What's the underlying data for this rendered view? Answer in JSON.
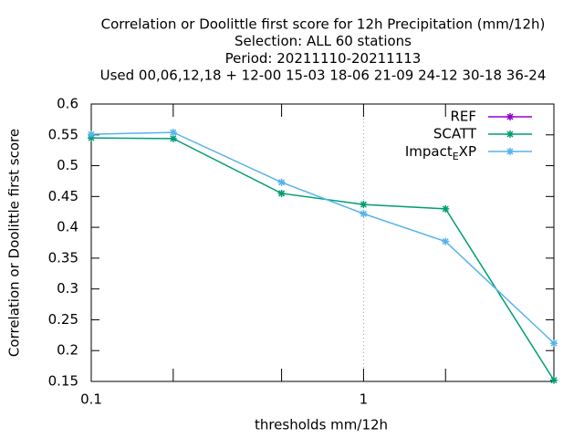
{
  "chart_data": {
    "type": "line",
    "title": [
      "Correlation or Doolittle first score  for 12h Precipitation (mm/12h)",
      "Selection: ALL     60 stations",
      "Period: 20211110-20211113",
      "Used  00,06,12,18 + 12-00 15-03 18-06 21-09 24-12 30-18 36-24"
    ],
    "xlabel": "thresholds mm/12h",
    "ylabel": "Correlation or Doolittle first score",
    "x": [
      0.1,
      0.2,
      0.5,
      1,
      2,
      5
    ],
    "series": [
      {
        "name": "REF",
        "color": "#9400d3",
        "values": [
          null,
          null,
          null,
          null,
          null,
          null
        ]
      },
      {
        "name": "SCATT",
        "color": "#009e73",
        "values": [
          0.545,
          0.544,
          0.455,
          0.437,
          0.43,
          0.152
        ]
      },
      {
        "name": "Impact_EXP",
        "color": "#56b4e9",
        "values": [
          0.551,
          0.554,
          0.473,
          0.422,
          0.377,
          0.212
        ]
      }
    ],
    "xlim": [
      0.1,
      5
    ],
    "xlog": true,
    "xticks": [
      0.1,
      1
    ],
    "xminorticks": [
      0.2,
      0.5,
      2
    ],
    "ylim": [
      0.15,
      0.6
    ],
    "yticks": [
      0.15,
      0.2,
      0.25,
      0.3,
      0.35,
      0.4,
      0.45,
      0.5,
      0.55,
      0.6
    ],
    "xgrid": true,
    "legend": "top-right"
  }
}
